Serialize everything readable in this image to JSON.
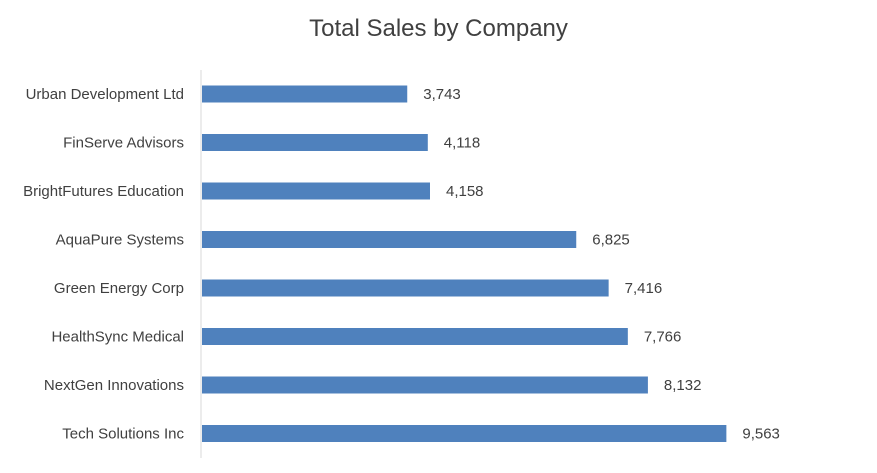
{
  "chart_data": {
    "type": "bar",
    "orientation": "horizontal",
    "title": "Total Sales by Company",
    "xlabel": "",
    "ylabel": "",
    "categories": [
      "Urban Development Ltd",
      "FinServe Advisors",
      "BrightFutures Education",
      "AquaPure Systems",
      "Green Energy Corp",
      "HealthSync Medical",
      "NextGen Innovations",
      "Tech Solutions Inc"
    ],
    "values": [
      3743,
      4118,
      4158,
      6825,
      7416,
      7766,
      8132,
      9563
    ],
    "value_labels": [
      "3,743",
      "4,118",
      "4,158",
      "6,825",
      "7,416",
      "7,766",
      "8,132",
      "9,563"
    ],
    "xlim": [
      0,
      12000
    ],
    "grid": false,
    "legend": "none",
    "bar_color": "#4F81BD"
  }
}
